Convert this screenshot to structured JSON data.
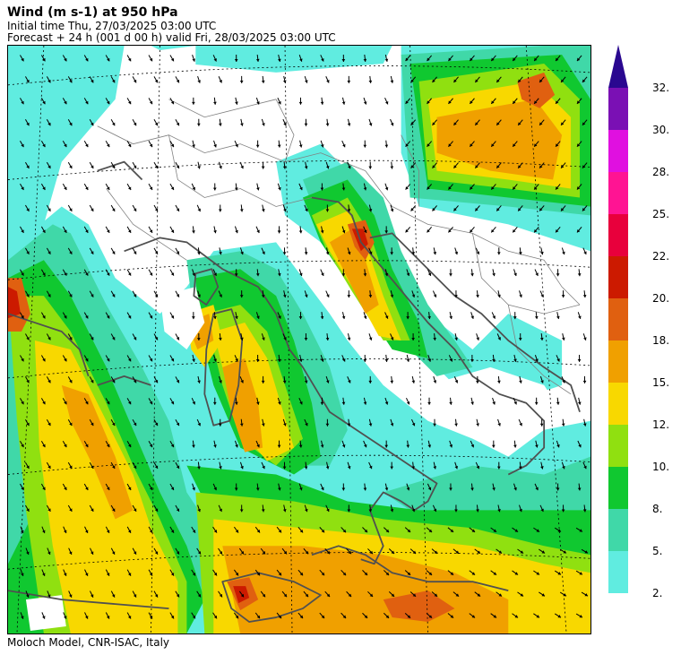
{
  "header": {
    "title": "Wind (m s-1) at 950 hPa",
    "initial_time": "Initial time  Thu, 27/03/2025  03:00 UTC",
    "forecast": "Forecast  +  24 h  (001 d 00 h)  valid Fri, 28/03/2025 03:00 UTC"
  },
  "footer": {
    "credit": "Moloch Model, CNR-ISAC, Italy"
  },
  "legend": {
    "labels": [
      "32.",
      "30.",
      "28.",
      "25.",
      "22.",
      "20.",
      "18.",
      "15.",
      "12.",
      "10.",
      "8.",
      "5.",
      "2."
    ],
    "colors": [
      "#7a10b4",
      "#e010e0",
      "#ff1493",
      "#e8003c",
      "#cc1a00",
      "#e06010",
      "#f0a000",
      "#f8d800",
      "#90e010",
      "#10c830",
      "#40d8a8",
      "#60ece0"
    ],
    "arrow_color": "#2a0890"
  },
  "map": {
    "colors": {
      "calm": "#ffffff",
      "speed_2": "#60ece0",
      "speed_5": "#40d8a8",
      "speed_8": "#10c830",
      "speed_10": "#90e010",
      "speed_12": "#f8d800",
      "speed_15": "#f0a000",
      "speed_18": "#e06010",
      "speed_20": "#cc1a00",
      "speed_22": "#e8003c",
      "coastline": "#505050",
      "border": "#808080",
      "grid": "#000000",
      "vector": "#000000"
    }
  }
}
